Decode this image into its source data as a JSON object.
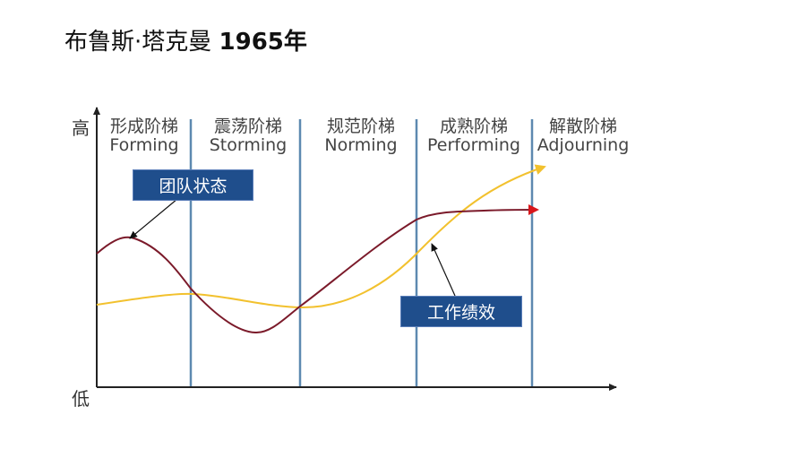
{
  "title": {
    "text": "布鲁斯·塔克曼",
    "year": "1965年"
  },
  "axis": {
    "high": "高",
    "low": "低"
  },
  "stages": [
    {
      "zh": "形成阶梯",
      "en": "Forming"
    },
    {
      "zh": "震荡阶梯",
      "en": "Storming"
    },
    {
      "zh": "规范阶梯",
      "en": "Norming"
    },
    {
      "zh": "成熟阶梯",
      "en": "Performing"
    },
    {
      "zh": "解散阶梯",
      "en": "Adjourning"
    }
  ],
  "callouts": {
    "team_state": "团队状态",
    "performance": "工作绩效"
  },
  "colors": {
    "team_state_line": "#7b1a2a",
    "team_state_arrow": "#d8161b",
    "performance_line": "#f2c12e",
    "stage_divider": "#5d89b0",
    "axis": "#222222",
    "callout_bg": "#1f4e8c"
  }
}
